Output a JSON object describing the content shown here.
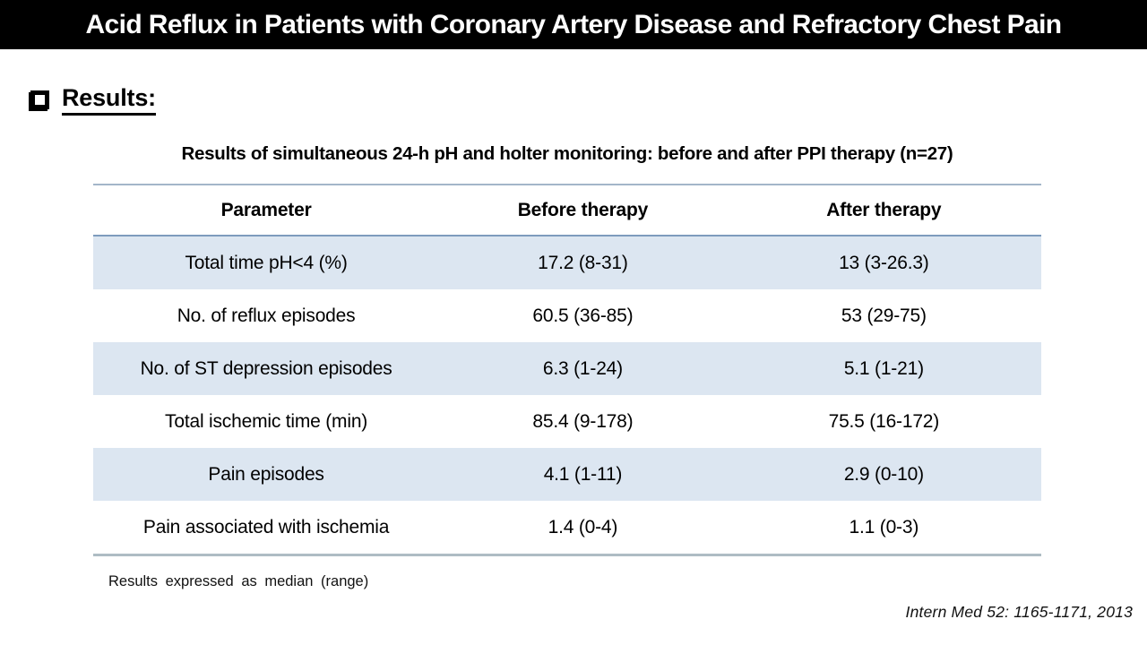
{
  "slide": {
    "title": "Acid Reflux in Patients with Coronary Artery Disease and Refractory Chest Pain",
    "section_heading": "Results:",
    "footnote": "Results expressed as median (range)",
    "citation": "Intern Med 52: 1165-1171, 2013"
  },
  "table": {
    "title": "Results of simultaneous 24-h pH and holter monitoring: before and after PPI therapy (n=27)",
    "columns": [
      "Parameter",
      "Before therapy",
      "After therapy"
    ],
    "rows": [
      {
        "parameter": "Total time pH<4 (%)",
        "before": "17.2 (8-31)",
        "after": "13 (3-26.3)"
      },
      {
        "parameter": "No. of reflux episodes",
        "before": "60.5 (36-85)",
        "after": "53 (29-75)"
      },
      {
        "parameter": "No. of ST depression episodes",
        "before": "6.3 (1-24)",
        "after": "5.1 (1-21)"
      },
      {
        "parameter": "Total ischemic time (min)",
        "before": "85.4 (9-178)",
        "after": "75.5 (16-172)"
      },
      {
        "parameter": "Pain episodes",
        "before": "4.1 (1-11)",
        "after": "2.9 (0-10)"
      },
      {
        "parameter": "Pain associated with ischemia",
        "before": "1.4 (0-4)",
        "after": "1.1 (0-3)"
      }
    ]
  },
  "colors": {
    "titlebar_bg": "#000000",
    "titlebar_text": "#ffffff",
    "band_fill": "#dce6f1",
    "border_top": "#a3b6c9",
    "border_header_bottom": "#7e9cbd",
    "border_bottom": "#aebcc4"
  }
}
